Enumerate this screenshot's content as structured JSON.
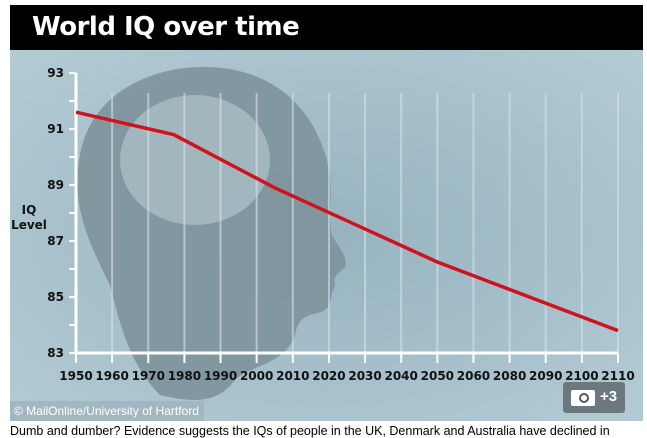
{
  "header": {
    "title": "World IQ over time"
  },
  "credit": "© MailOnline/University of Hartford",
  "gallery": {
    "icon": "camera-icon",
    "count": "+3"
  },
  "caption": "Dumb and dumber? Evidence suggests the IQs of people in the UK, Denmark and Australia have declined in",
  "chart_data": {
    "type": "line",
    "title": "World IQ over time",
    "ylabel": "IQ Level",
    "ylabel_lines": [
      "IQ",
      "Level"
    ],
    "xlabel": "",
    "categories": [
      "1950",
      "1960",
      "1970",
      "1980",
      "1990",
      "2000",
      "2010",
      "2020",
      "2030",
      "2040",
      "2050",
      "2060",
      "2080",
      "2090",
      "2100",
      "2110"
    ],
    "yticks": [
      93,
      91,
      89,
      87,
      85,
      83
    ],
    "ylim": [
      83,
      93
    ],
    "grid": "vertical",
    "series": [
      {
        "color": "#d0121b",
        "points": [
          [
            1950,
            91.6
          ],
          [
            1977,
            90.8
          ],
          [
            2005,
            88.9
          ],
          [
            2050,
            86.25
          ],
          [
            2110,
            83.8
          ]
        ]
      }
    ]
  }
}
